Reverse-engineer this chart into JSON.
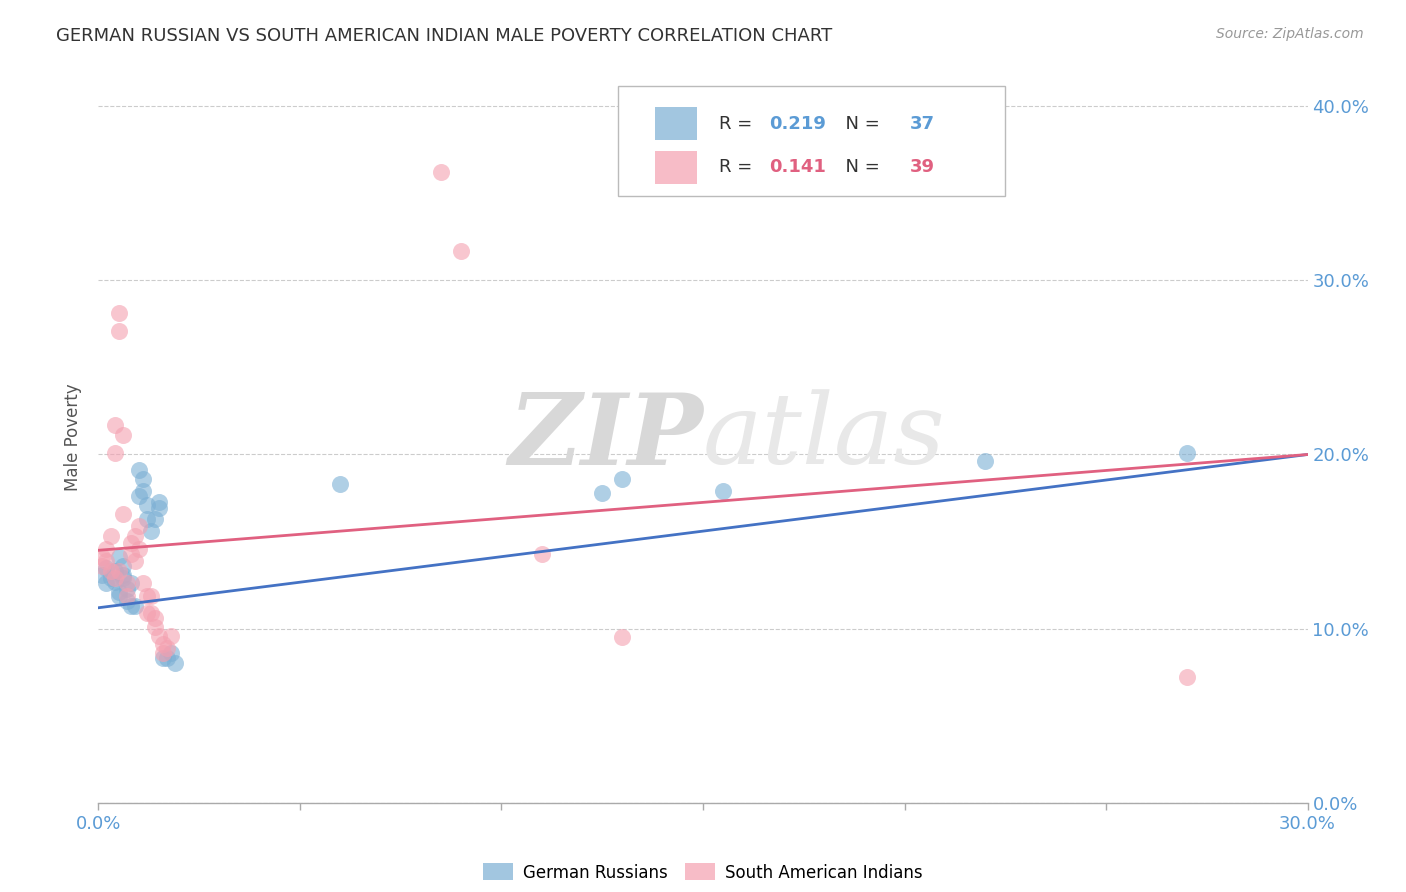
{
  "title": "GERMAN RUSSIAN VS SOUTH AMERICAN INDIAN MALE POVERTY CORRELATION CHART",
  "source": "Source: ZipAtlas.com",
  "ylabel": "Male Poverty",
  "legend_label1": "German Russians",
  "legend_label2": "South American Indians",
  "R1": "0.219",
  "N1": "37",
  "R2": "0.141",
  "N2": "39",
  "watermark_zip": "ZIP",
  "watermark_atlas": "atlas",
  "blue_color": "#7BAFD4",
  "pink_color": "#F4A0B0",
  "blue_scatter": [
    [
      0.001,
      0.131
    ],
    [
      0.002,
      0.126
    ],
    [
      0.002,
      0.135
    ],
    [
      0.003,
      0.129
    ],
    [
      0.004,
      0.133
    ],
    [
      0.004,
      0.127
    ],
    [
      0.005,
      0.141
    ],
    [
      0.005,
      0.121
    ],
    [
      0.005,
      0.119
    ],
    [
      0.006,
      0.131
    ],
    [
      0.006,
      0.136
    ],
    [
      0.006,
      0.129
    ],
    [
      0.007,
      0.123
    ],
    [
      0.007,
      0.116
    ],
    [
      0.008,
      0.126
    ],
    [
      0.008,
      0.113
    ],
    [
      0.009,
      0.113
    ],
    [
      0.01,
      0.176
    ],
    [
      0.01,
      0.191
    ],
    [
      0.011,
      0.186
    ],
    [
      0.011,
      0.179
    ],
    [
      0.012,
      0.171
    ],
    [
      0.012,
      0.163
    ],
    [
      0.013,
      0.156
    ],
    [
      0.014,
      0.163
    ],
    [
      0.015,
      0.173
    ],
    [
      0.015,
      0.169
    ],
    [
      0.016,
      0.083
    ],
    [
      0.017,
      0.083
    ],
    [
      0.018,
      0.086
    ],
    [
      0.019,
      0.08
    ],
    [
      0.13,
      0.186
    ],
    [
      0.155,
      0.179
    ],
    [
      0.22,
      0.196
    ],
    [
      0.27,
      0.201
    ],
    [
      0.125,
      0.178
    ],
    [
      0.06,
      0.183
    ]
  ],
  "pink_scatter": [
    [
      0.001,
      0.136
    ],
    [
      0.001,
      0.141
    ],
    [
      0.002,
      0.146
    ],
    [
      0.002,
      0.139
    ],
    [
      0.003,
      0.153
    ],
    [
      0.003,
      0.133
    ],
    [
      0.004,
      0.217
    ],
    [
      0.004,
      0.201
    ],
    [
      0.004,
      0.129
    ],
    [
      0.005,
      0.133
    ],
    [
      0.005,
      0.281
    ],
    [
      0.005,
      0.271
    ],
    [
      0.006,
      0.211
    ],
    [
      0.006,
      0.166
    ],
    [
      0.007,
      0.126
    ],
    [
      0.007,
      0.119
    ],
    [
      0.008,
      0.149
    ],
    [
      0.008,
      0.143
    ],
    [
      0.009,
      0.139
    ],
    [
      0.009,
      0.153
    ],
    [
      0.01,
      0.146
    ],
    [
      0.01,
      0.159
    ],
    [
      0.011,
      0.126
    ],
    [
      0.012,
      0.119
    ],
    [
      0.012,
      0.109
    ],
    [
      0.013,
      0.119
    ],
    [
      0.013,
      0.109
    ],
    [
      0.014,
      0.101
    ],
    [
      0.014,
      0.106
    ],
    [
      0.015,
      0.096
    ],
    [
      0.016,
      0.091
    ],
    [
      0.016,
      0.086
    ],
    [
      0.017,
      0.089
    ],
    [
      0.018,
      0.096
    ],
    [
      0.085,
      0.362
    ],
    [
      0.09,
      0.317
    ],
    [
      0.11,
      0.143
    ],
    [
      0.13,
      0.095
    ],
    [
      0.27,
      0.072
    ]
  ],
  "blue_line": [
    [
      0.0,
      0.112
    ],
    [
      0.3,
      0.2
    ]
  ],
  "pink_line": [
    [
      0.0,
      0.145
    ],
    [
      0.3,
      0.2
    ]
  ],
  "xlim": [
    0.0,
    0.3
  ],
  "ylim": [
    0.0,
    0.42
  ],
  "xticks": [
    0.0,
    0.05,
    0.1,
    0.15,
    0.2,
    0.25,
    0.3
  ],
  "yticks": [
    0.0,
    0.1,
    0.2,
    0.3,
    0.4
  ],
  "x_end_labels": [
    "0.0%",
    "30.0%"
  ],
  "y_right_labels": [
    "0.0%",
    "10.0%",
    "20.0%",
    "30.0%",
    "40.0%"
  ],
  "background_color": "#FFFFFF",
  "grid_color": "#CCCCCC"
}
